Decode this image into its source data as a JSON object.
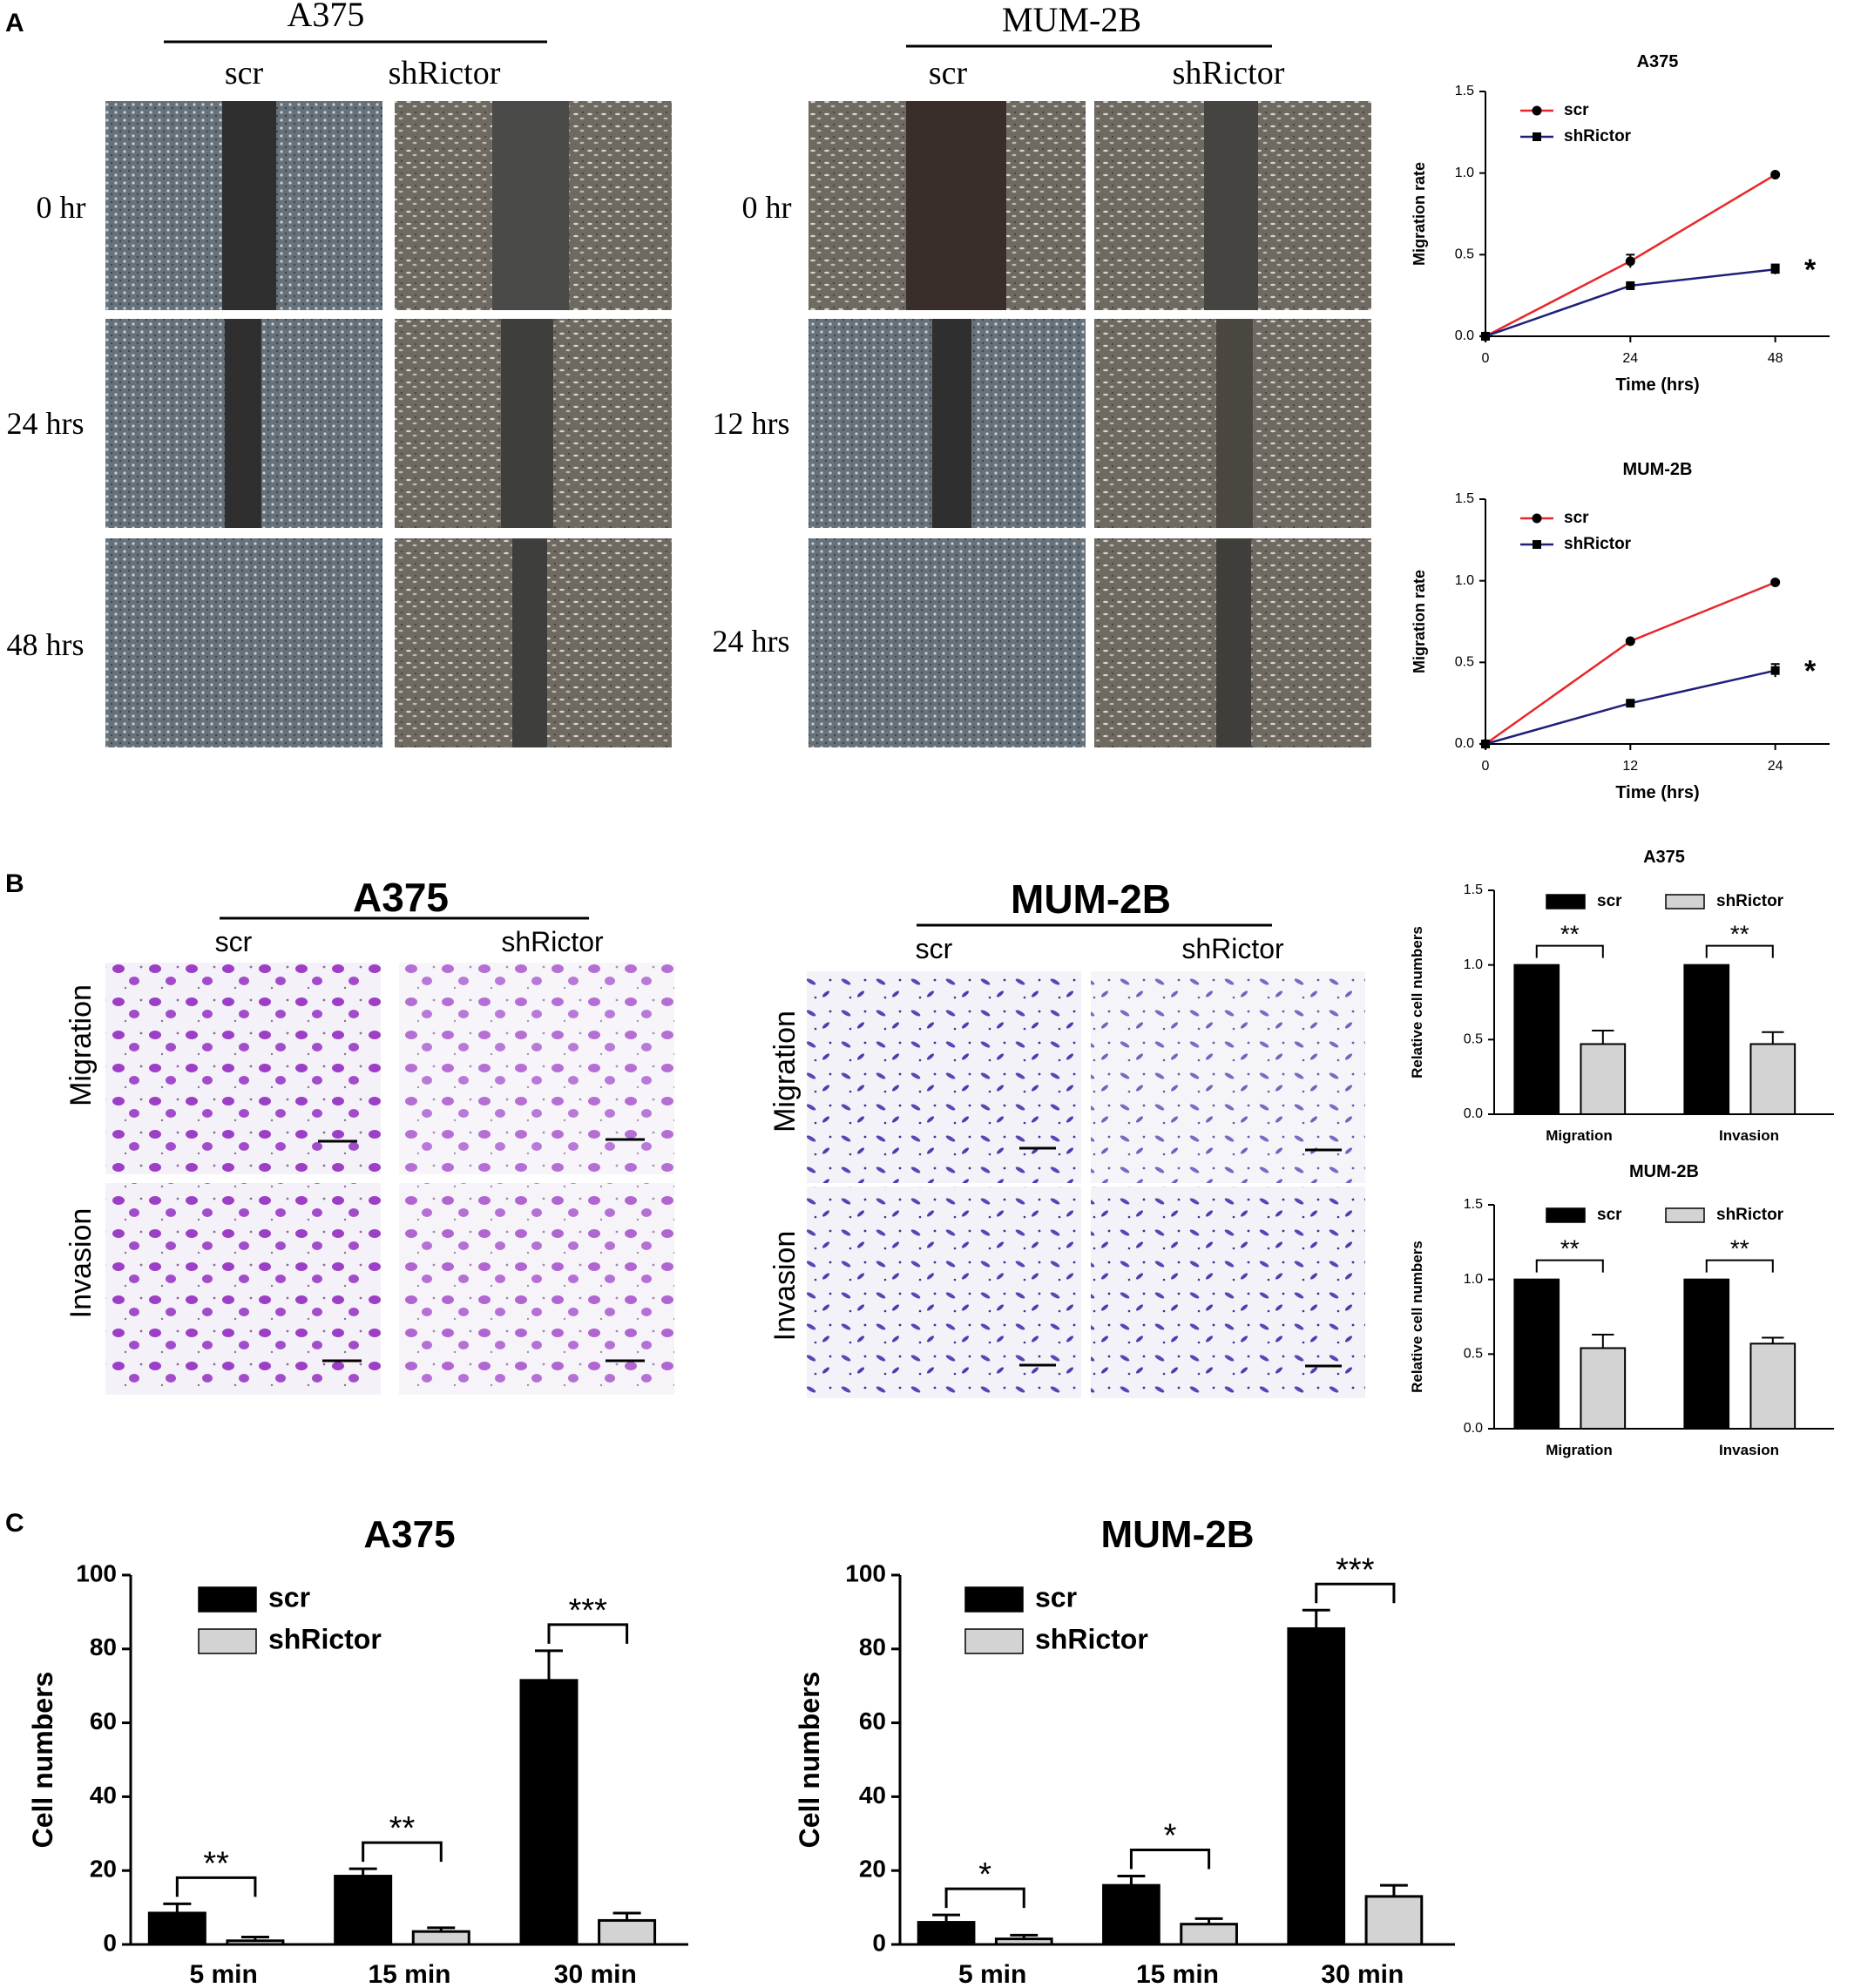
{
  "panels": {
    "A": "A",
    "B": "B",
    "C": "C"
  },
  "colors": {
    "scr_line": "#e8262a",
    "shrictor_line": "#1f1f7a",
    "scr_bar": "#000000",
    "shrictor_bar": "#d3d3d3",
    "wound_cell_bg": "#6f6a60",
    "wound_gap": "#2c2c2c",
    "transwell_bg": "#f4f0f7",
    "crystal_violet_A375": "#9b3fc4",
    "crystal_violet_MUM2B": "#5a46b8"
  },
  "panelA": {
    "a375": {
      "cell_line": "A375",
      "conditions": [
        "scr",
        "shRictor"
      ],
      "times": [
        "0 hr",
        "24 hrs",
        "48 hrs"
      ]
    },
    "mum2b": {
      "cell_line": "MUM-2B",
      "conditions": [
        "scr",
        "shRictor"
      ],
      "times": [
        "0 hr",
        "12 hrs",
        "24 hrs"
      ]
    }
  },
  "panelB": {
    "a375": {
      "cell_line": "A375",
      "conditions": [
        "scr",
        "shRictor"
      ],
      "rows": [
        "Migration",
        "Invasion"
      ]
    },
    "mum2b": {
      "cell_line": "MUM-2B",
      "conditions": [
        "scr",
        "shRictor"
      ],
      "rows": [
        "Migration",
        "Invasion"
      ]
    }
  },
  "chart_data": [
    {
      "id": "A-A375",
      "type": "line",
      "title": "A375",
      "xlabel": "Time (hrs)",
      "ylabel": "Migration rate",
      "x": [
        0,
        24,
        48
      ],
      "xticks": [
        "0",
        "24",
        "48"
      ],
      "xlim": [
        0,
        57
      ],
      "ylim": [
        0,
        1.5
      ],
      "yticks": [
        "0.0",
        "0.5",
        "1.0",
        "1.5"
      ],
      "series": [
        {
          "name": "scr",
          "values": [
            0,
            0.46,
            0.99
          ],
          "errors": [
            0,
            0.04,
            0.01
          ]
        },
        {
          "name": "shRictor",
          "values": [
            0,
            0.31,
            0.41
          ],
          "errors": [
            0,
            0.01,
            0.03
          ]
        }
      ],
      "annotation": "*",
      "legend": "top-left"
    },
    {
      "id": "A-MUM2B",
      "type": "line",
      "title": "MUM-2B",
      "xlabel": "Time (hrs)",
      "ylabel": "Migration rate",
      "x": [
        0,
        12,
        24
      ],
      "xticks": [
        "0",
        "12",
        "24"
      ],
      "xlim": [
        0,
        28.5
      ],
      "ylim": [
        0,
        1.5
      ],
      "yticks": [
        "0.0",
        "0.5",
        "1.0",
        "1.5"
      ],
      "series": [
        {
          "name": "scr",
          "values": [
            0,
            0.63,
            0.99
          ],
          "errors": [
            0,
            0.01,
            0.01
          ]
        },
        {
          "name": "shRictor",
          "values": [
            0,
            0.25,
            0.45
          ],
          "errors": [
            0,
            0.01,
            0.04
          ]
        }
      ],
      "annotation": "*",
      "legend": "top-left"
    },
    {
      "id": "B-A375",
      "type": "bar",
      "title": "A375",
      "ylabel": "Relative cell numbers",
      "categories": [
        "Migration",
        "Invasion"
      ],
      "ylim": [
        0,
        1.5
      ],
      "yticks": [
        "0.0",
        "0.5",
        "1.0",
        "1.5"
      ],
      "series": [
        {
          "name": "scr",
          "values": [
            1.0,
            1.0
          ],
          "errors": [
            0,
            0
          ]
        },
        {
          "name": "shRictor",
          "values": [
            0.47,
            0.47
          ],
          "errors": [
            0.09,
            0.08
          ]
        }
      ],
      "significance": [
        "**",
        "**"
      ],
      "legend": "top"
    },
    {
      "id": "B-MUM2B",
      "type": "bar",
      "title": "MUM-2B",
      "ylabel": "Relative cell numbers",
      "categories": [
        "Migration",
        "Invasion"
      ],
      "ylim": [
        0,
        1.5
      ],
      "yticks": [
        "0.0",
        "0.5",
        "1.0",
        "1.5"
      ],
      "series": [
        {
          "name": "scr",
          "values": [
            1.0,
            1.0
          ],
          "errors": [
            0,
            0
          ]
        },
        {
          "name": "shRictor",
          "values": [
            0.54,
            0.57
          ],
          "errors": [
            0.09,
            0.04
          ]
        }
      ],
      "significance": [
        "**",
        "**"
      ],
      "legend": "top"
    },
    {
      "id": "C-A375",
      "type": "bar",
      "title": "A375",
      "ylabel": "Cell numbers",
      "categories": [
        "5 min",
        "15 min",
        "30 min"
      ],
      "ylim": [
        0,
        100
      ],
      "yticks": [
        "0",
        "20",
        "40",
        "60",
        "80",
        "100"
      ],
      "series": [
        {
          "name": "scr",
          "values": [
            8.5,
            18.5,
            71.5
          ],
          "errors": [
            2.5,
            2.0,
            8.0
          ]
        },
        {
          "name": "shRictor",
          "values": [
            1.0,
            3.5,
            6.5
          ],
          "errors": [
            1.0,
            1.0,
            2.0
          ]
        }
      ],
      "significance": [
        "**",
        "**",
        "***"
      ],
      "legend": "top-left"
    },
    {
      "id": "C-MUM2B",
      "type": "bar",
      "title": "MUM-2B",
      "ylabel": "Cell numbers",
      "categories": [
        "5 min",
        "15 min",
        "30 min"
      ],
      "ylim": [
        0,
        100
      ],
      "yticks": [
        "0",
        "20",
        "40",
        "60",
        "80",
        "100"
      ],
      "series": [
        {
          "name": "scr",
          "values": [
            6.0,
            16.0,
            85.5
          ],
          "errors": [
            2.0,
            2.5,
            5.0
          ]
        },
        {
          "name": "shRictor",
          "values": [
            1.5,
            5.5,
            13.0
          ],
          "errors": [
            1.0,
            1.5,
            3.0
          ]
        }
      ],
      "significance": [
        "*",
        "*",
        "***"
      ],
      "legend": "top-left"
    }
  ]
}
